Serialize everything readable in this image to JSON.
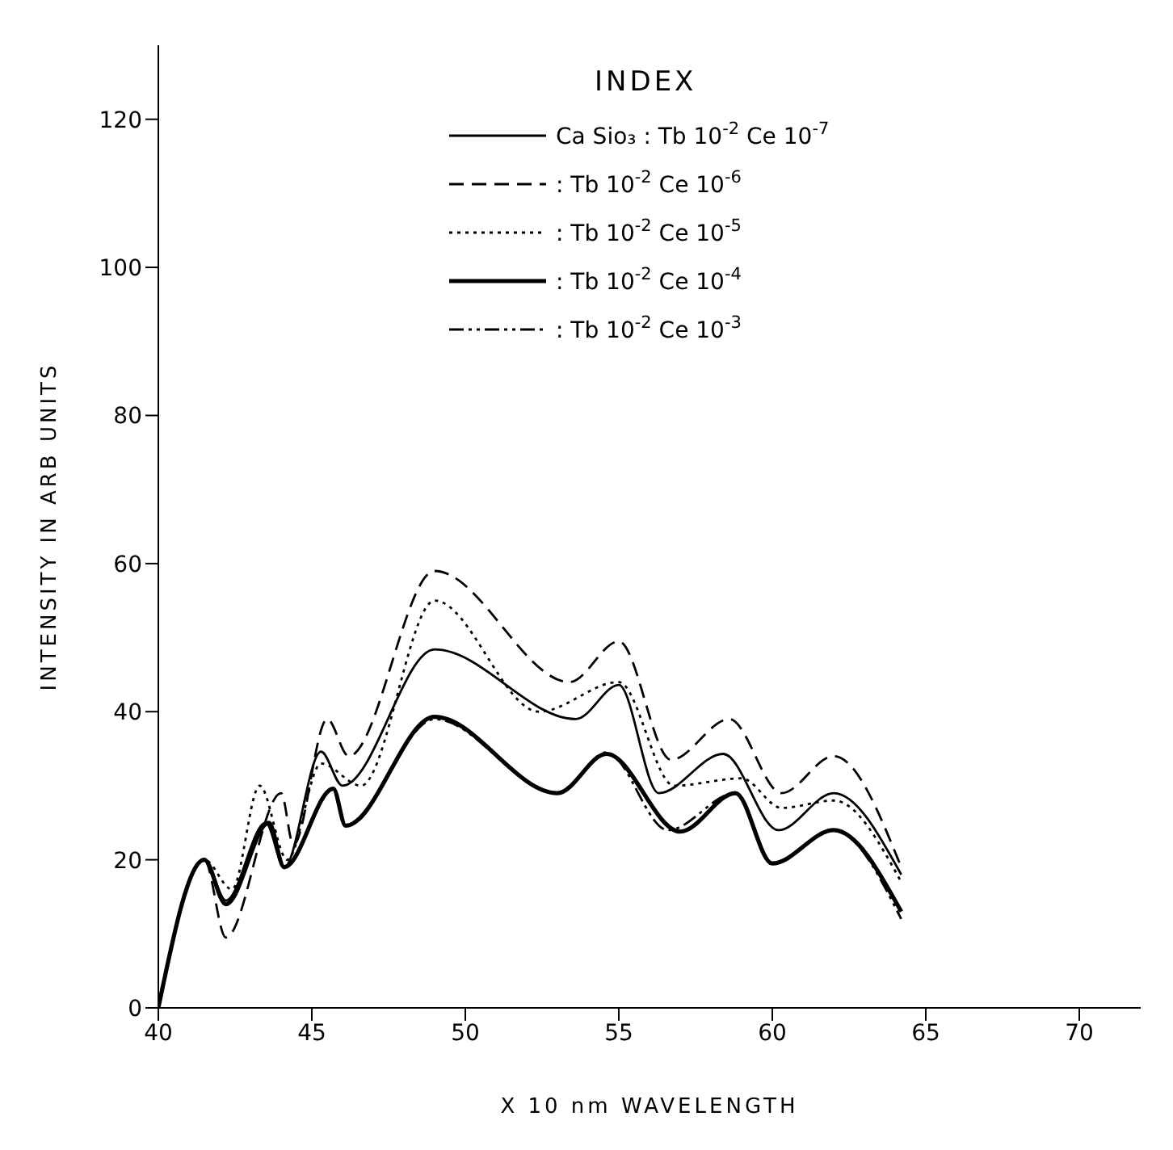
{
  "chart_data": {
    "type": "line",
    "xlabel": "X 10 nm WAVELENGTH",
    "ylabel": "INTENSITY IN ARB UNITS",
    "legend_title": "INDEX",
    "legend": "top right",
    "grid": false,
    "marker": "none",
    "xlim": [
      40,
      72
    ],
    "xticks": [
      40,
      45,
      50,
      55,
      60,
      65,
      70
    ],
    "ylim": [
      0,
      130
    ],
    "yticks": [
      0,
      20,
      40,
      60,
      80,
      100,
      120
    ],
    "series": [
      {
        "name": "Ca Sio₃ : Tb 10$^{-2}$ Ce 10$^{-7}$",
        "color": "#000000",
        "line_style": "solid",
        "x": [
          40,
          41.5,
          42.2,
          43.5,
          44.1,
          45.3,
          46,
          49,
          53.6,
          55,
          56.3,
          58.4,
          60.2,
          62,
          64.2
        ],
        "values": [
          0,
          20,
          14.5,
          25,
          19,
          34.6,
          30,
          48.4,
          39,
          43.6,
          29,
          34.3,
          24,
          29,
          18
        ]
      },
      {
        "name": ": Tb 10$^{-2}$ Ce 10$^{-6}$",
        "color": "#000000",
        "line_style": "dashed",
        "x": [
          40,
          41.5,
          42.2,
          44,
          44.4,
          45.5,
          46.2,
          49,
          53.4,
          55,
          56.7,
          58.6,
          60.3,
          62,
          64.2
        ],
        "values": [
          0,
          20,
          9.5,
          29,
          22,
          39,
          34,
          59,
          44,
          49.5,
          33.5,
          39,
          29,
          34,
          19
        ]
      },
      {
        "name": ": Tb 10$^{-2}$ Ce 10$^{-5}$",
        "color": "#000000",
        "line_style": "dotted",
        "x": [
          40,
          41.5,
          42.4,
          43.3,
          44.2,
          45.3,
          46.6,
          49,
          52.4,
          55,
          56.8,
          59,
          60.3,
          62,
          64.2
        ],
        "values": [
          0,
          20,
          16,
          30,
          20,
          33,
          30,
          55,
          40,
          44,
          30,
          31,
          27,
          28,
          17
        ]
      },
      {
        "name": ": Tb 10$^{-2}$ Ce 10$^{-4}$",
        "color": "#000000",
        "line_style": "solid",
        "x": [
          40,
          41.5,
          42.2,
          43.6,
          44.1,
          45.7,
          46.1,
          49,
          53,
          54.6,
          57,
          58.8,
          60,
          62,
          64.2
        ],
        "values": [
          0,
          20,
          14,
          25,
          19,
          29.6,
          24.6,
          39.3,
          29,
          34.3,
          23.8,
          29,
          19.5,
          24,
          13
        ]
      },
      {
        "name": ": Tb 10$^{-2}$ Ce 10$^{-3}$",
        "color": "#000000",
        "line_style": "dashdot",
        "x": [
          40,
          41.5,
          42.2,
          43.6,
          44.1,
          45.7,
          46.1,
          49,
          53,
          54.6,
          56.6,
          58.8,
          60,
          62,
          64.2
        ],
        "values": [
          0,
          20,
          14,
          25,
          19,
          29.6,
          24.6,
          39,
          29,
          34.5,
          24,
          29,
          19.5,
          24,
          12
        ]
      }
    ]
  }
}
